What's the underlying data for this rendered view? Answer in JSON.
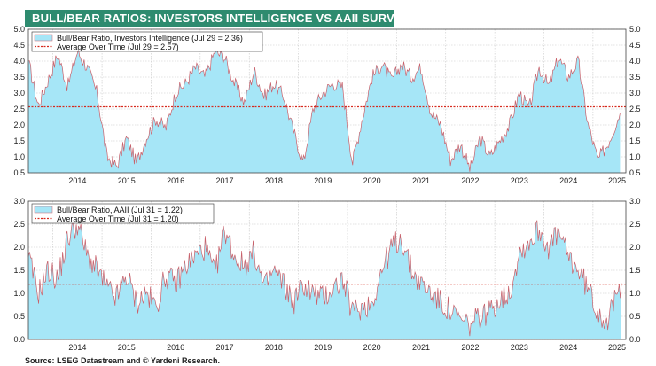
{
  "title": "BULL/BEAR RATIOS: INVESTORS INTELLIGENCE VS AAII SURVEYS",
  "source": "Source: LSEG Datastream and © Yardeni Research.",
  "colors": {
    "banner": "#2e8b6f",
    "fill": "#a6e6f7",
    "outline": "#c9606a",
    "average": "#d62a1e"
  },
  "chart_data": [
    {
      "type": "area",
      "series": [
        {
          "name": "Bull/Bear Ratio, Investors Intelligence (Jul 29 = 2.36)",
          "x": [
            2013.5,
            2013.7,
            2013.9,
            2014.1,
            2014.3,
            2014.5,
            2014.7,
            2014.9,
            2015.1,
            2015.3,
            2015.5,
            2015.7,
            2015.9,
            2016.1,
            2016.3,
            2016.5,
            2016.7,
            2016.9,
            2017.1,
            2017.3,
            2017.5,
            2017.7,
            2017.9,
            2018.1,
            2018.3,
            2018.5,
            2018.7,
            2018.9,
            2019.1,
            2019.3,
            2019.5,
            2019.7,
            2019.9,
            2020.1,
            2020.3,
            2020.5,
            2020.7,
            2020.9,
            2021.1,
            2021.3,
            2021.5,
            2021.7,
            2021.9,
            2022.1,
            2022.3,
            2022.5,
            2022.7,
            2022.9,
            2023.1,
            2023.3,
            2023.5,
            2023.7,
            2023.9,
            2024.1,
            2024.3,
            2024.5,
            2024.7,
            2024.9,
            2025.1,
            2025.3,
            2025.55
          ],
          "values": [
            4.0,
            2.6,
            3.4,
            4.2,
            3.2,
            4.3,
            3.8,
            3.0,
            1.0,
            0.7,
            1.6,
            0.8,
            1.6,
            2.2,
            1.9,
            3.0,
            3.3,
            3.8,
            3.5,
            4.3,
            4.1,
            3.3,
            2.7,
            3.7,
            2.9,
            3.3,
            2.9,
            1.8,
            0.8,
            2.5,
            3.0,
            3.3,
            3.2,
            0.8,
            2.2,
            3.5,
            3.9,
            3.4,
            3.9,
            3.5,
            3.8,
            2.4,
            2.0,
            0.9,
            1.4,
            0.6,
            1.6,
            1.0,
            1.5,
            2.0,
            3.0,
            2.5,
            3.8,
            3.2,
            4.1,
            3.5,
            4.0,
            2.0,
            0.9,
            1.4,
            2.36
          ]
        },
        {
          "name": "Average Over Time (Jul 29 = 2.57)",
          "values": [
            2.57
          ]
        }
      ],
      "ylim": [
        0.5,
        5.0
      ],
      "yticks": [
        "0.5",
        "1.0",
        "1.5",
        "2.0",
        "2.5",
        "3.0",
        "3.5",
        "4.0",
        "4.5",
        "5.0"
      ],
      "xlim": [
        2013.5,
        2025.67
      ],
      "xticks": [
        "2014",
        "2015",
        "2016",
        "2017",
        "2018",
        "2019",
        "2020",
        "2021",
        "2022",
        "2023",
        "2024",
        "2025"
      ],
      "legend": "top-left",
      "grid": true
    },
    {
      "type": "area",
      "series": [
        {
          "name": "Bull/Bear Ratio, AAII (Jul 31 = 1.22)",
          "x": [
            2013.5,
            2013.7,
            2013.9,
            2014.1,
            2014.3,
            2014.5,
            2014.7,
            2014.9,
            2015.1,
            2015.3,
            2015.5,
            2015.7,
            2015.9,
            2016.1,
            2016.3,
            2016.5,
            2016.7,
            2016.9,
            2017.1,
            2017.3,
            2017.5,
            2017.7,
            2017.9,
            2018.1,
            2018.3,
            2018.5,
            2018.7,
            2018.9,
            2019.1,
            2019.3,
            2019.5,
            2019.7,
            2019.9,
            2020.1,
            2020.3,
            2020.5,
            2020.7,
            2020.9,
            2021.1,
            2021.3,
            2021.5,
            2021.7,
            2021.9,
            2022.1,
            2022.3,
            2022.5,
            2022.7,
            2022.9,
            2023.1,
            2023.3,
            2023.5,
            2023.7,
            2023.9,
            2024.1,
            2024.3,
            2024.5,
            2024.7,
            2024.9,
            2025.1,
            2025.3,
            2025.58
          ],
          "values": [
            1.8,
            1.0,
            1.5,
            1.3,
            2.2,
            2.5,
            1.8,
            1.5,
            1.1,
            0.9,
            1.4,
            0.8,
            1.0,
            0.7,
            1.4,
            1.2,
            1.6,
            1.8,
            2.0,
            1.4,
            2.4,
            1.8,
            1.6,
            1.9,
            1.1,
            1.5,
            1.2,
            0.8,
            1.2,
            1.0,
            0.9,
            1.1,
            1.3,
            0.6,
            0.7,
            0.8,
            1.5,
            2.0,
            2.2,
            1.5,
            1.2,
            1.0,
            0.8,
            0.6,
            0.4,
            0.3,
            0.5,
            0.6,
            0.9,
            1.0,
            1.9,
            2.1,
            2.4,
            2.0,
            2.3,
            1.8,
            1.5,
            1.1,
            0.6,
            0.4,
            1.22
          ]
        },
        {
          "name": "Average Over Time (Jul 31 = 1.20)",
          "values": [
            1.2
          ]
        }
      ],
      "ylim": [
        0.0,
        3.0
      ],
      "yticks": [
        "0.0",
        "0.5",
        "1.0",
        "1.5",
        "2.0",
        "2.5",
        "3.0"
      ],
      "xlim": [
        2013.5,
        2025.67
      ],
      "xticks": [
        "2014",
        "2015",
        "2016",
        "2017",
        "2018",
        "2019",
        "2020",
        "2021",
        "2022",
        "2023",
        "2024",
        "2025"
      ],
      "legend": "top-left",
      "grid": true
    }
  ]
}
